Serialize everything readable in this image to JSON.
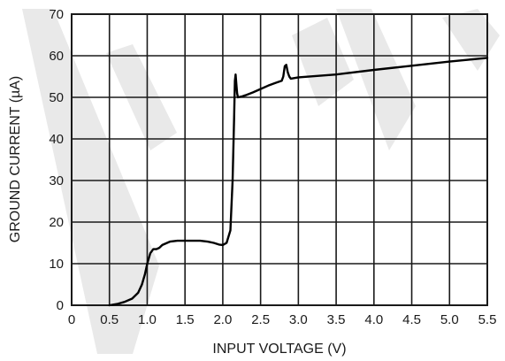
{
  "chart_data": {
    "type": "line",
    "title": "",
    "xlabel": "INPUT VOLTAGE (V)",
    "ylabel": "GROUND CURRENT (µA)",
    "xlim": [
      0,
      5.5
    ],
    "ylim": [
      0,
      70
    ],
    "x_ticks": [
      0,
      0.5,
      1.0,
      1.5,
      2.0,
      2.5,
      3.0,
      3.5,
      4.0,
      4.5,
      5.0,
      5.5
    ],
    "x_tick_labels": [
      "0",
      "0.5",
      "1.0",
      "1.5",
      "2.0",
      "2.5",
      "3.0",
      "3.5",
      "4.0",
      "4.5",
      "5.0",
      "5.5"
    ],
    "y_ticks": [
      0,
      10,
      20,
      30,
      40,
      50,
      60,
      70
    ],
    "y_tick_labels": [
      "0",
      "10",
      "20",
      "30",
      "40",
      "50",
      "60",
      "70"
    ],
    "grid": true,
    "legend": "none",
    "series": [
      {
        "x": [
          0.5,
          0.6,
          0.7,
          0.8,
          0.88,
          0.93,
          0.97,
          1.0,
          1.04,
          1.08,
          1.12,
          1.16,
          1.2,
          1.3,
          1.4,
          1.5,
          1.6,
          1.7,
          1.8,
          1.88,
          1.95,
          2.0,
          2.05,
          2.1,
          2.13,
          2.15,
          2.16,
          2.17,
          2.18,
          2.19,
          2.2,
          2.25,
          2.3,
          2.4,
          2.5,
          2.6,
          2.7,
          2.78,
          2.8,
          2.82,
          2.84,
          2.86,
          2.88,
          2.9,
          3.0,
          3.5,
          4.0,
          4.5,
          5.0,
          5.5
        ],
        "y": [
          0,
          0.3,
          0.8,
          1.6,
          3,
          5,
          7.5,
          10,
          12.5,
          13.5,
          13.5,
          13.8,
          14.5,
          15.3,
          15.5,
          15.5,
          15.5,
          15.5,
          15.3,
          15,
          14.6,
          14.5,
          15,
          18,
          30,
          45,
          54,
          55.5,
          53,
          51,
          50,
          50.2,
          50.5,
          51.2,
          52,
          52.8,
          53.5,
          54,
          55,
          57.5,
          57.8,
          56,
          55,
          54.5,
          54.8,
          55.5,
          56.6,
          57.6,
          58.6,
          59.5
        ]
      }
    ]
  }
}
